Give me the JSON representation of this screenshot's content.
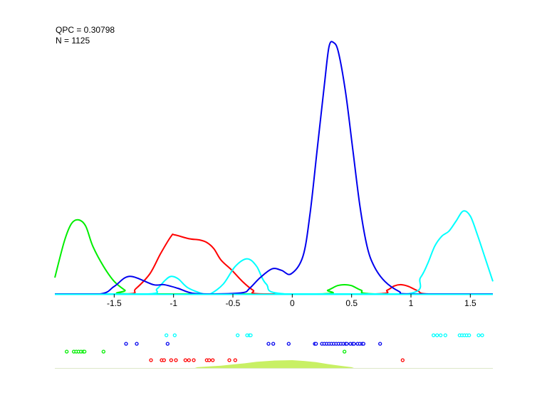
{
  "chart_data": {
    "type": "line",
    "annotations": [
      "QPC = 0.30798",
      "N = 1125"
    ],
    "xlim": [
      -2.0,
      1.69
    ],
    "ylim": [
      0,
      1
    ],
    "grid": false,
    "xticks": [
      -1.5,
      -1,
      -0.5,
      0,
      0.5,
      1,
      1.5
    ],
    "xtick_labels": [
      "-1.5",
      "-1",
      "-0.5",
      "0",
      "0.5",
      "1",
      "1.5"
    ],
    "series": [
      {
        "color": "#00ee00",
        "points": [
          [
            -2.0,
            0.065
          ],
          [
            -1.92,
            0.21
          ],
          [
            -1.86,
            0.28
          ],
          [
            -1.8,
            0.295
          ],
          [
            -1.74,
            0.27
          ],
          [
            -1.68,
            0.19
          ],
          [
            -1.59,
            0.11
          ],
          [
            -1.5,
            0.05
          ],
          [
            -1.41,
            0.015
          ],
          [
            -1.35,
            0
          ],
          [
            0.2,
            0
          ],
          [
            0.3,
            0.015
          ],
          [
            0.38,
            0.033
          ],
          [
            0.44,
            0.037
          ],
          [
            0.5,
            0.033
          ],
          [
            0.58,
            0.015
          ],
          [
            0.7,
            0
          ],
          [
            1.69,
            0
          ]
        ]
      },
      {
        "color": "#ff0000",
        "points": [
          [
            -2.0,
            0
          ],
          [
            -1.39,
            0
          ],
          [
            -1.32,
            0.02
          ],
          [
            -1.2,
            0.08
          ],
          [
            -1.11,
            0.16
          ],
          [
            -1.02,
            0.23
          ],
          [
            -0.99,
            0.235
          ],
          [
            -0.87,
            0.22
          ],
          [
            -0.78,
            0.215
          ],
          [
            -0.72,
            0.205
          ],
          [
            -0.66,
            0.18
          ],
          [
            -0.6,
            0.135
          ],
          [
            -0.51,
            0.095
          ],
          [
            -0.42,
            0.05
          ],
          [
            -0.33,
            0.015
          ],
          [
            -0.24,
            0
          ],
          [
            0.7,
            0
          ],
          [
            0.8,
            0.015
          ],
          [
            0.86,
            0.032
          ],
          [
            0.92,
            0.037
          ],
          [
            0.98,
            0.03
          ],
          [
            1.06,
            0.012
          ],
          [
            1.15,
            0
          ],
          [
            1.69,
            0
          ]
        ]
      },
      {
        "color": "#00ffff",
        "points": [
          [
            -2.0,
            0
          ],
          [
            -1.22,
            0
          ],
          [
            -1.14,
            0.02
          ],
          [
            -1.07,
            0.055
          ],
          [
            -1.02,
            0.07
          ],
          [
            -0.96,
            0.06
          ],
          [
            -0.88,
            0.025
          ],
          [
            -0.75,
            0
          ],
          [
            -0.69,
            0
          ],
          [
            -0.58,
            0.04
          ],
          [
            -0.48,
            0.11
          ],
          [
            -0.38,
            0.14
          ],
          [
            -0.3,
            0.11
          ],
          [
            -0.22,
            0.04
          ],
          [
            -0.06,
            0
          ],
          [
            0.96,
            0
          ],
          [
            1.08,
            0.065
          ],
          [
            1.14,
            0.12
          ],
          [
            1.2,
            0.19
          ],
          [
            1.26,
            0.23
          ],
          [
            1.32,
            0.25
          ],
          [
            1.38,
            0.29
          ],
          [
            1.44,
            0.33
          ],
          [
            1.5,
            0.31
          ],
          [
            1.56,
            0.235
          ],
          [
            1.62,
            0.15
          ],
          [
            1.69,
            0.05
          ]
        ]
      },
      {
        "color": "#0000ee",
        "points": [
          [
            -2.0,
            0
          ],
          [
            -1.62,
            0
          ],
          [
            -1.5,
            0.03
          ],
          [
            -1.37,
            0.07
          ],
          [
            -1.17,
            0.037
          ],
          [
            -1.08,
            0.037
          ],
          [
            -0.96,
            0.022
          ],
          [
            -0.84,
            0.003
          ],
          [
            -0.66,
            0
          ],
          [
            -0.42,
            0.005
          ],
          [
            -0.36,
            0.022
          ],
          [
            -0.27,
            0.065
          ],
          [
            -0.17,
            0.1
          ],
          [
            -0.09,
            0.094
          ],
          [
            -0.01,
            0.08
          ],
          [
            0.09,
            0.15
          ],
          [
            0.15,
            0.32
          ],
          [
            0.21,
            0.575
          ],
          [
            0.27,
            0.83
          ],
          [
            0.31,
            0.985
          ],
          [
            0.35,
            1.0
          ],
          [
            0.39,
            0.96
          ],
          [
            0.45,
            0.8
          ],
          [
            0.51,
            0.575
          ],
          [
            0.57,
            0.35
          ],
          [
            0.63,
            0.19
          ],
          [
            0.69,
            0.11
          ],
          [
            0.78,
            0.05
          ],
          [
            0.9,
            0.01
          ],
          [
            0.99,
            0
          ],
          [
            1.69,
            0
          ]
        ]
      }
    ],
    "point_rows": [
      {
        "color": "#00ffff",
        "x": [
          -1.06,
          -0.99,
          -0.46,
          -0.38,
          -0.36,
          -0.35,
          1.19,
          1.22,
          1.25,
          1.29,
          1.41,
          1.43,
          1.45,
          1.47,
          1.49,
          1.57,
          1.6
        ]
      },
      {
        "color": "#0000ee",
        "x": [
          -1.4,
          -1.31,
          -1.05,
          -0.2,
          -0.16,
          -0.03,
          0.19,
          0.2,
          0.25,
          0.27,
          0.29,
          0.31,
          0.33,
          0.35,
          0.37,
          0.39,
          0.41,
          0.43,
          0.45,
          0.46,
          0.49,
          0.51,
          0.52,
          0.55,
          0.57,
          0.59,
          0.6,
          0.74
        ]
      },
      {
        "color": "#00ee00",
        "x": [
          -1.9,
          -1.84,
          -1.82,
          -1.8,
          -1.78,
          -1.76,
          -1.75,
          -1.59,
          0.44
        ]
      },
      {
        "color": "#ff0000",
        "x": [
          -1.19,
          -1.1,
          -1.08,
          -1.02,
          -0.98,
          -0.9,
          -0.87,
          -0.83,
          -0.72,
          -0.7,
          -0.67,
          -0.53,
          -0.48,
          0.93
        ]
      }
    ],
    "summary_area": {
      "color": "#c8f064",
      "points": [
        [
          -0.82,
          0
        ],
        [
          -0.8,
          0.1
        ],
        [
          -0.7,
          0.2
        ],
        [
          -0.6,
          0.3
        ],
        [
          -0.5,
          0.45
        ],
        [
          -0.4,
          0.6
        ],
        [
          -0.3,
          0.8
        ],
        [
          -0.15,
          0.95
        ],
        [
          0,
          1
        ],
        [
          0.1,
          0.9
        ],
        [
          0.2,
          0.75
        ],
        [
          0.3,
          0.5
        ],
        [
          0.4,
          0.3
        ],
        [
          0.5,
          0.1
        ],
        [
          0.52,
          0
        ]
      ]
    }
  }
}
